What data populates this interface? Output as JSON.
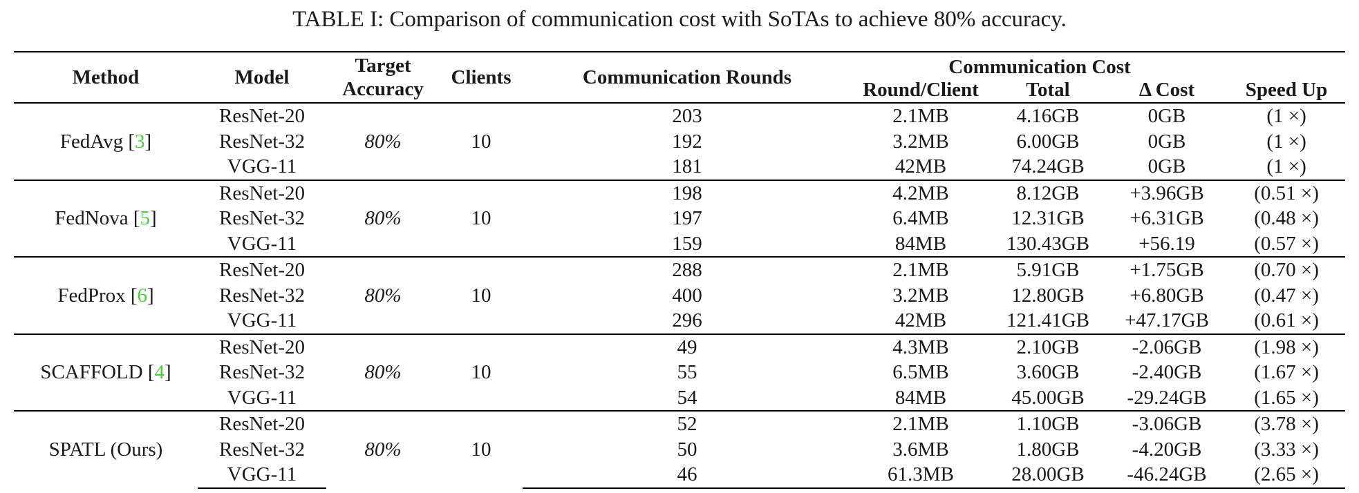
{
  "caption": "TABLE I: Comparison of communication cost with SoTAs to achieve 80% accuracy.",
  "header": {
    "method": "Method",
    "model": "Model",
    "target_accuracy": "Target Accuracy",
    "clients": "Clients",
    "communication_rounds": "Communication Rounds",
    "communication_cost": "Communication Cost",
    "round_client": "Round/Client",
    "total": "Total",
    "delta_cost": "Δ Cost",
    "speed_up": "Speed Up"
  },
  "groups": [
    {
      "method": "FedAvg [",
      "ref": "3",
      "method_close": "]",
      "accuracy": "80%",
      "clients": "10",
      "rows": [
        {
          "model": "ResNet-20",
          "rounds": "203",
          "round_client": "2.1MB",
          "total": "4.16GB",
          "delta": "0GB",
          "speedup": "(1 ×)"
        },
        {
          "model": "ResNet-32",
          "rounds": "192",
          "round_client": "3.2MB",
          "total": "6.00GB",
          "delta": "0GB",
          "speedup": "(1 ×)"
        },
        {
          "model": "VGG-11",
          "rounds": "181",
          "round_client": "42MB",
          "total": "74.24GB",
          "delta": "0GB",
          "speedup": "(1 ×)"
        }
      ]
    },
    {
      "method": "FedNova [",
      "ref": "5",
      "method_close": "]",
      "accuracy": "80%",
      "clients": "10",
      "rows": [
        {
          "model": "ResNet-20",
          "rounds": "198",
          "round_client": "4.2MB",
          "total": "8.12GB",
          "delta": "+3.96GB",
          "speedup": "(0.51 ×)"
        },
        {
          "model": "ResNet-32",
          "rounds": "197",
          "round_client": "6.4MB",
          "total": "12.31GB",
          "delta": "+6.31GB",
          "speedup": "(0.48 ×)"
        },
        {
          "model": "VGG-11",
          "rounds": "159",
          "round_client": "84MB",
          "total": "130.43GB",
          "delta": "+56.19",
          "speedup": "(0.57 ×)"
        }
      ]
    },
    {
      "method": "FedProx [",
      "ref": "6",
      "method_close": "]",
      "accuracy": "80%",
      "clients": "10",
      "rows": [
        {
          "model": "ResNet-20",
          "rounds": "288",
          "round_client": "2.1MB",
          "total": "5.91GB",
          "delta": "+1.75GB",
          "speedup": "(0.70 ×)"
        },
        {
          "model": "ResNet-32",
          "rounds": "400",
          "round_client": "3.2MB",
          "total": "12.80GB",
          "delta": "+6.80GB",
          "speedup": "(0.47 ×)"
        },
        {
          "model": "VGG-11",
          "rounds": "296",
          "round_client": "42MB",
          "total": "121.41GB",
          "delta": "+47.17GB",
          "speedup": "(0.61 ×)"
        }
      ]
    },
    {
      "method": "SCAFFOLD [",
      "ref": "4",
      "method_close": "]",
      "accuracy": "80%",
      "clients": "10",
      "rows": [
        {
          "model": "ResNet-20",
          "rounds": "49",
          "round_client": "4.3MB",
          "total": "2.10GB",
          "delta": "-2.06GB",
          "speedup": "(1.98 ×)"
        },
        {
          "model": "ResNet-32",
          "rounds": "55",
          "round_client": "6.5MB",
          "total": "3.60GB",
          "delta": "-2.40GB",
          "speedup": "(1.67 ×)"
        },
        {
          "model": "VGG-11",
          "rounds": "54",
          "round_client": "84MB",
          "total": "45.00GB",
          "delta": "-29.24GB",
          "speedup": "(1.65 ×)"
        }
      ]
    },
    {
      "method": "SPATL (Ours)",
      "ref": "",
      "method_close": "",
      "accuracy": "80%",
      "clients": "10",
      "rows": [
        {
          "model": "ResNet-20",
          "rounds": "52",
          "round_client": "2.1MB",
          "total": "1.10GB",
          "delta": "-3.06GB",
          "speedup": "(3.78 ×)"
        },
        {
          "model": "ResNet-32",
          "rounds": "50",
          "round_client": "3.6MB",
          "total": "1.80GB",
          "delta": "-4.20GB",
          "speedup": "(3.33 ×)"
        },
        {
          "model": "VGG-11",
          "rounds": "46",
          "round_client": "61.3MB",
          "total": "28.00GB",
          "delta": "-46.24GB",
          "speedup": "(2.65 ×)"
        }
      ]
    }
  ]
}
